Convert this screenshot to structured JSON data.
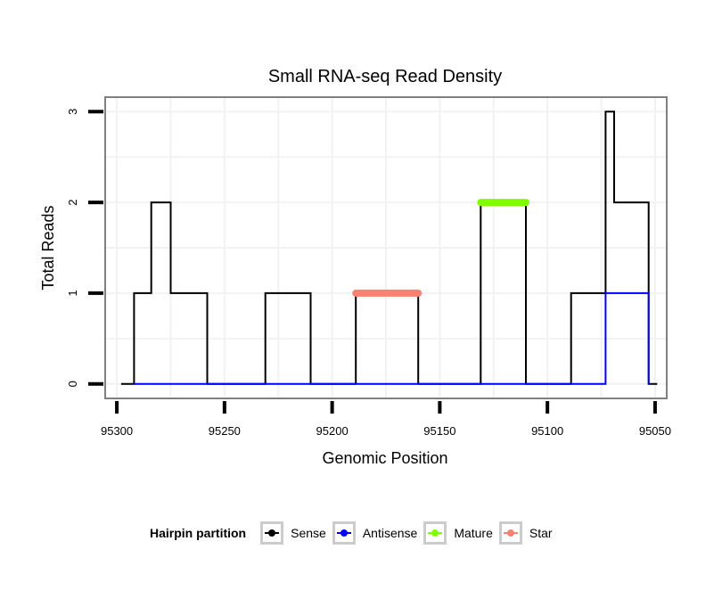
{
  "chart_data": {
    "type": "line",
    "title": "Small RNA-seq Read Density",
    "xlabel": "Genomic Position",
    "ylabel": "Total Reads",
    "x_reversed": true,
    "xlim": [
      95305,
      95045
    ],
    "ylim": [
      -0.15,
      3.15
    ],
    "x_ticks": [
      95300,
      95250,
      95200,
      95150,
      95100,
      95050
    ],
    "y_ticks": [
      0,
      1,
      2,
      3
    ],
    "grid": true,
    "legend": {
      "title": "Hairpin partition",
      "position": "bottom"
    },
    "series": [
      {
        "name": "Sense",
        "color": "#000000",
        "points": [
          [
            95298,
            0
          ],
          [
            95292,
            0
          ],
          [
            95292,
            1
          ],
          [
            95284,
            1
          ],
          [
            95284,
            2
          ],
          [
            95275,
            2
          ],
          [
            95275,
            1
          ],
          [
            95258,
            1
          ],
          [
            95258,
            0
          ],
          [
            95231,
            0
          ],
          [
            95231,
            1
          ],
          [
            95210,
            1
          ],
          [
            95210,
            0
          ],
          [
            95189,
            0
          ],
          [
            95189,
            1
          ],
          [
            95160,
            1
          ],
          [
            95160,
            0
          ],
          [
            95131,
            0
          ],
          [
            95131,
            2
          ],
          [
            95110,
            2
          ],
          [
            95110,
            0
          ],
          [
            95089,
            0
          ],
          [
            95089,
            1
          ],
          [
            95073,
            1
          ],
          [
            95073,
            3
          ],
          [
            95069,
            3
          ],
          [
            95069,
            2
          ],
          [
            95053,
            2
          ],
          [
            95053,
            0
          ],
          [
            95049,
            0
          ]
        ]
      },
      {
        "name": "Antisense",
        "color": "#0000ff",
        "points": [
          [
            95292,
            0
          ],
          [
            95073,
            0
          ],
          [
            95073,
            1
          ],
          [
            95053,
            1
          ],
          [
            95053,
            0
          ]
        ]
      },
      {
        "name": "Mature",
        "color": "#7fff00",
        "points": [
          [
            95131,
            2
          ],
          [
            95110,
            2
          ]
        ]
      },
      {
        "name": "Star",
        "color": "#fa8072",
        "points": [
          [
            95189,
            1
          ],
          [
            95160,
            1
          ]
        ]
      }
    ]
  }
}
